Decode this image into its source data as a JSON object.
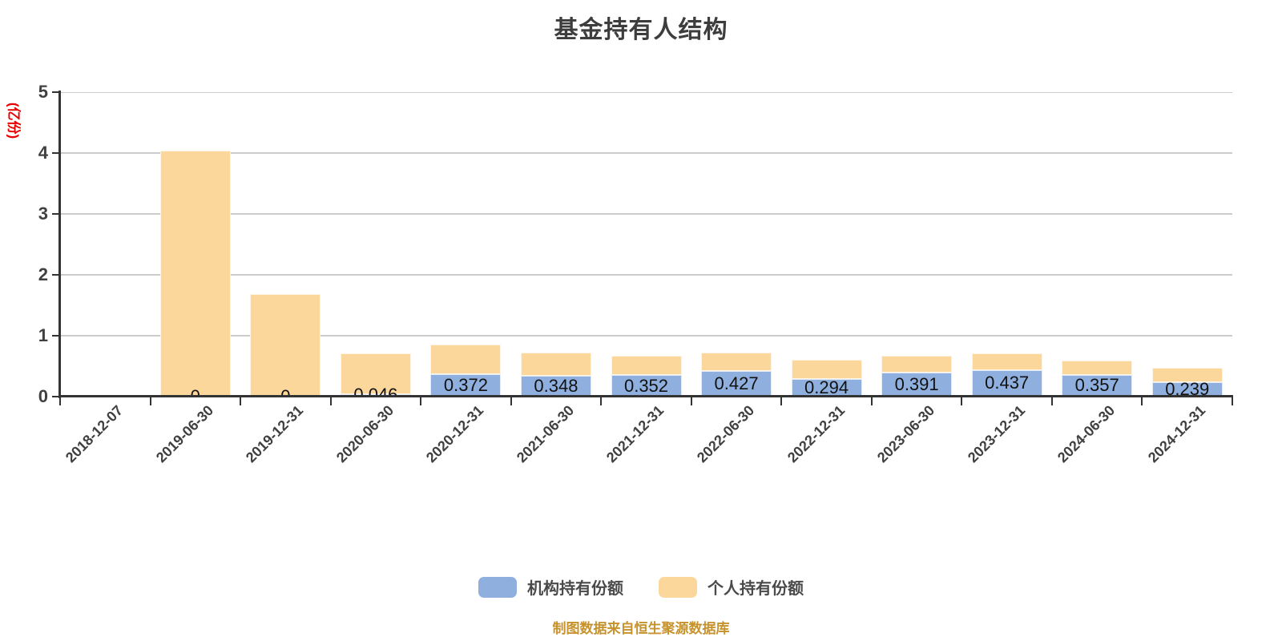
{
  "title": "基金持有人结构",
  "y_axis_unit": "(亿份)",
  "footer_note": "制图数据来自恒生聚源数据库",
  "colors": {
    "institution_bar": "#8FB0DE",
    "individual_bar": "#FCD79B",
    "grid_line": "#CCCCCC",
    "axis_line": "#333333",
    "title_text": "#3D3D3D",
    "tick_text": "#404040",
    "unit_text": "#E60000",
    "footer_text": "#C6922C",
    "value_label_text": "#111111"
  },
  "chart_data": {
    "type": "bar",
    "stacked": true,
    "title": "基金持有人结构",
    "ylabel": "(亿份)",
    "xlabel": "",
    "ylim": [
      0,
      5
    ],
    "yticks": [
      0,
      1,
      2,
      3,
      4,
      5
    ],
    "grid": true,
    "legend_position": "bottom",
    "categories": [
      "2018-12-07",
      "2019-06-30",
      "2019-12-31",
      "2020-06-30",
      "2020-12-31",
      "2021-06-30",
      "2021-12-31",
      "2022-06-30",
      "2022-12-31",
      "2023-06-30",
      "2023-12-31",
      "2024-06-30",
      "2024-12-31"
    ],
    "series": [
      {
        "name": "机构持有份额",
        "color": "#8FB0DE",
        "values": [
          0,
          0,
          0,
          0.046,
          0.372,
          0.348,
          0.352,
          0.427,
          0.294,
          0.391,
          0.437,
          0.357,
          0.239
        ],
        "labels": [
          "",
          "0",
          "0",
          "0.046",
          "0.372",
          "0.348",
          "0.352",
          "0.427",
          "0.294",
          "0.391",
          "0.437",
          "0.357",
          "0.239"
        ]
      },
      {
        "name": "个人持有份额",
        "color": "#FCD79B",
        "values": [
          0,
          4.04,
          1.68,
          0.66,
          0.49,
          0.38,
          0.32,
          0.3,
          0.31,
          0.28,
          0.27,
          0.24,
          0.23
        ],
        "labels": [
          "",
          "",
          "",
          "",
          "",
          "",
          "",
          "",
          "",
          "",
          "",
          "",
          ""
        ]
      }
    ]
  }
}
